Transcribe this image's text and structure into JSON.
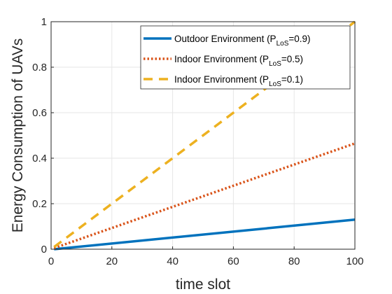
{
  "chart_data": {
    "type": "line",
    "xlabel": "time slot",
    "ylabel": "Energy Consumption of UAVs",
    "xlim": [
      0,
      100
    ],
    "ylim": [
      0,
      1
    ],
    "xticks": [
      "0",
      "20",
      "40",
      "60",
      "80",
      "100"
    ],
    "yticks": [
      "0",
      "0.2",
      "0.4",
      "0.6",
      "0.8",
      "1"
    ],
    "grid": true,
    "legend_position": "top-right",
    "series": [
      {
        "name": "Outdoor Environment (P_LoS=0.9)",
        "legend": {
          "pre": "Outdoor Environment (P",
          "sub": "LoS",
          "post": "=0.9)"
        },
        "style": "solid",
        "color": "#0072BD",
        "x": [
          1,
          100
        ],
        "y": [
          0.0,
          0.13
        ]
      },
      {
        "name": "Indoor Environment (P_LoS=0.5)",
        "legend": {
          "pre": "Indoor Environment (P",
          "sub": "LoS",
          "post": "=0.5)"
        },
        "style": "dotted",
        "color": "#D95319",
        "x": [
          1,
          100
        ],
        "y": [
          0.005,
          0.465
        ]
      },
      {
        "name": "Indoor Environment (P_LoS=0.1)",
        "legend": {
          "pre": "Indoor Environment (P",
          "sub": "LoS",
          "post": "=0.1)"
        },
        "style": "dashed",
        "color": "#EDB120",
        "x": [
          1,
          100
        ],
        "y": [
          0.01,
          1.0
        ]
      }
    ]
  }
}
